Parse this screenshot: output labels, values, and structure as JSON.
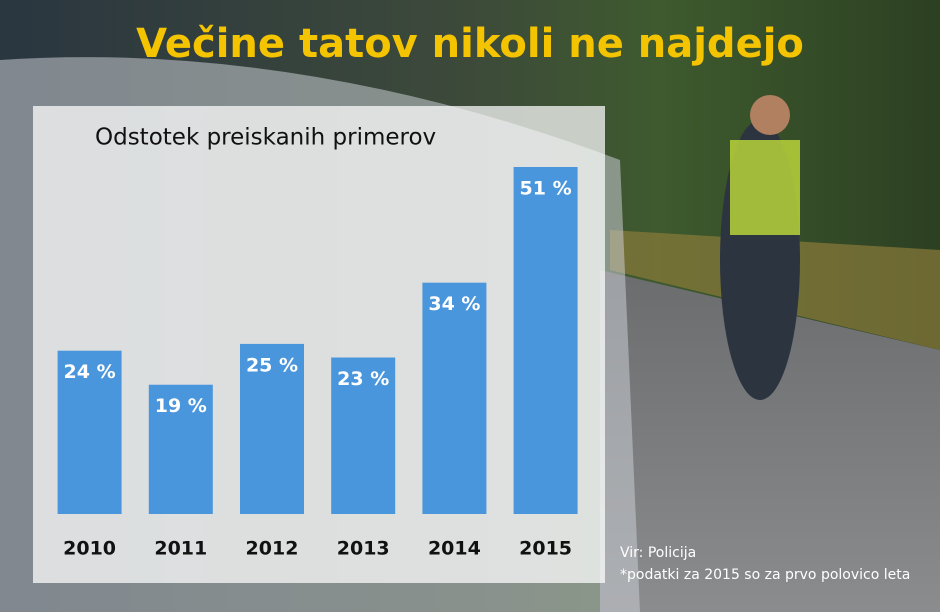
{
  "chart_data": {
    "type": "bar",
    "title": "Večine tatov nikoli ne najdejo",
    "subtitle": "Odstotek preiskanih primerov",
    "categories": [
      "2010",
      "2011",
      "2012",
      "2013",
      "2014",
      "2015"
    ],
    "values": [
      24,
      19,
      25,
      23,
      34,
      51
    ],
    "value_labels": [
      "24 %",
      "19 %",
      "25 %",
      "23 %",
      "34 %",
      "51 %"
    ],
    "color": "#4a96dc",
    "source": "Vir: Policija",
    "note": "*podatki za 2015 so za prvo polovico leta"
  }
}
